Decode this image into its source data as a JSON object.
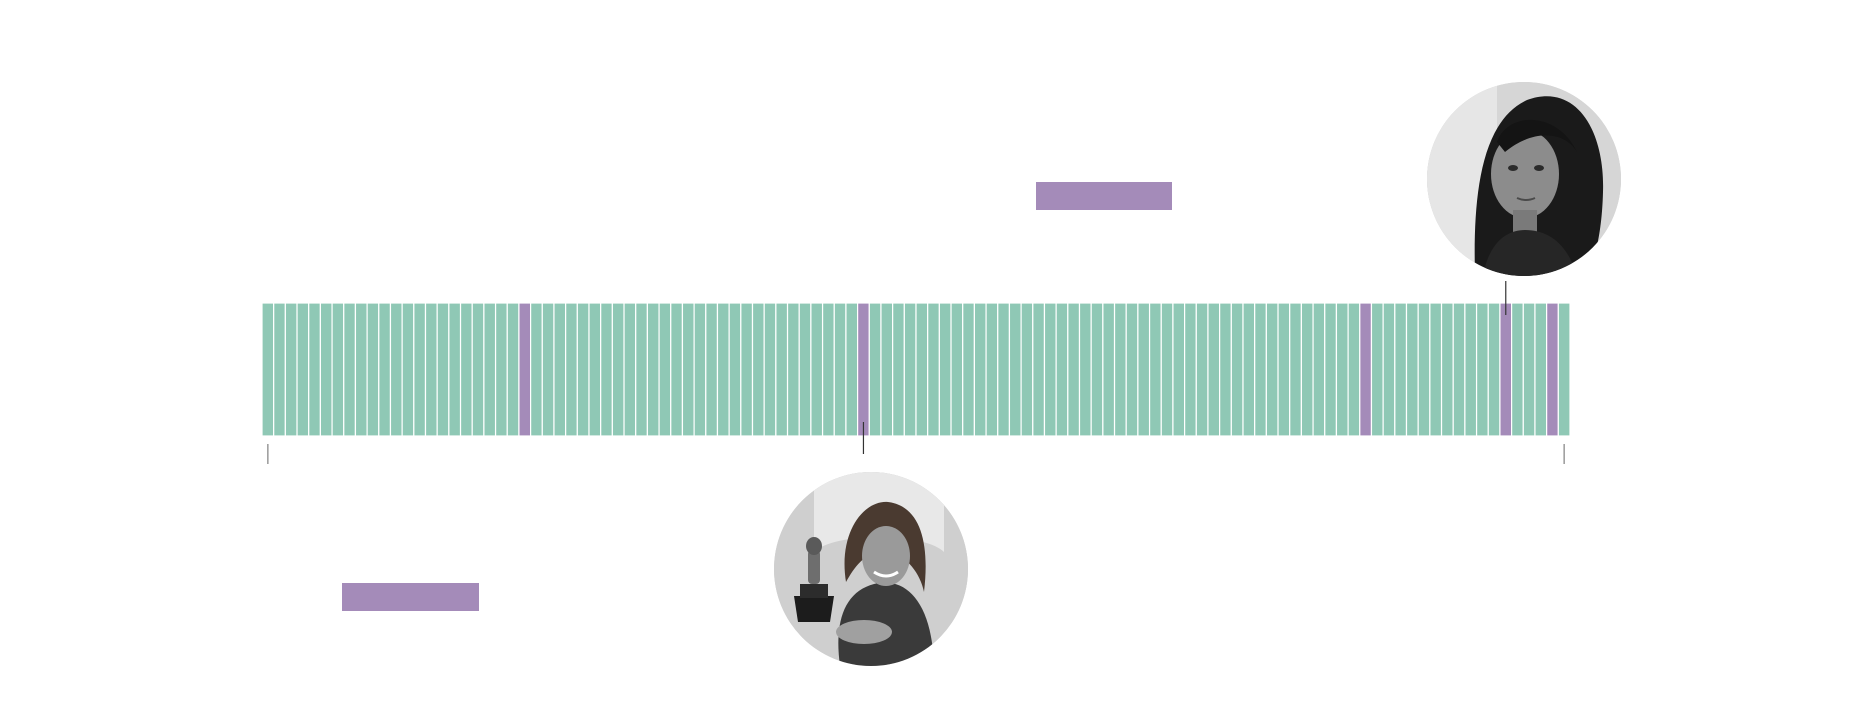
{
  "colors": {
    "standard": "#8fc8b5",
    "highlight": "#a48bb9",
    "divider": "#ffffff",
    "tick": "#999999",
    "leader": "#333333",
    "background": "#ffffff"
  },
  "icons": {
    "top_portrait": "woman-portrait-icon",
    "bottom_portrait": "woman-holding-trophy-portrait-icon"
  },
  "chart_data": {
    "type": "bar",
    "layout": "unit-strip",
    "total_units": 112,
    "highlight_units": [
      23,
      52,
      95,
      107,
      111
    ],
    "axis_markers": "first-and-last-unit",
    "callouts": [
      {
        "unit": 52,
        "position": "below"
      },
      {
        "unit": 107,
        "position": "above"
      }
    ],
    "legend": [
      {
        "color": "highlight",
        "position": "top-center"
      },
      {
        "color": "highlight",
        "position": "bottom-left"
      }
    ],
    "title": "",
    "xlabel": "",
    "ylabel": ""
  }
}
